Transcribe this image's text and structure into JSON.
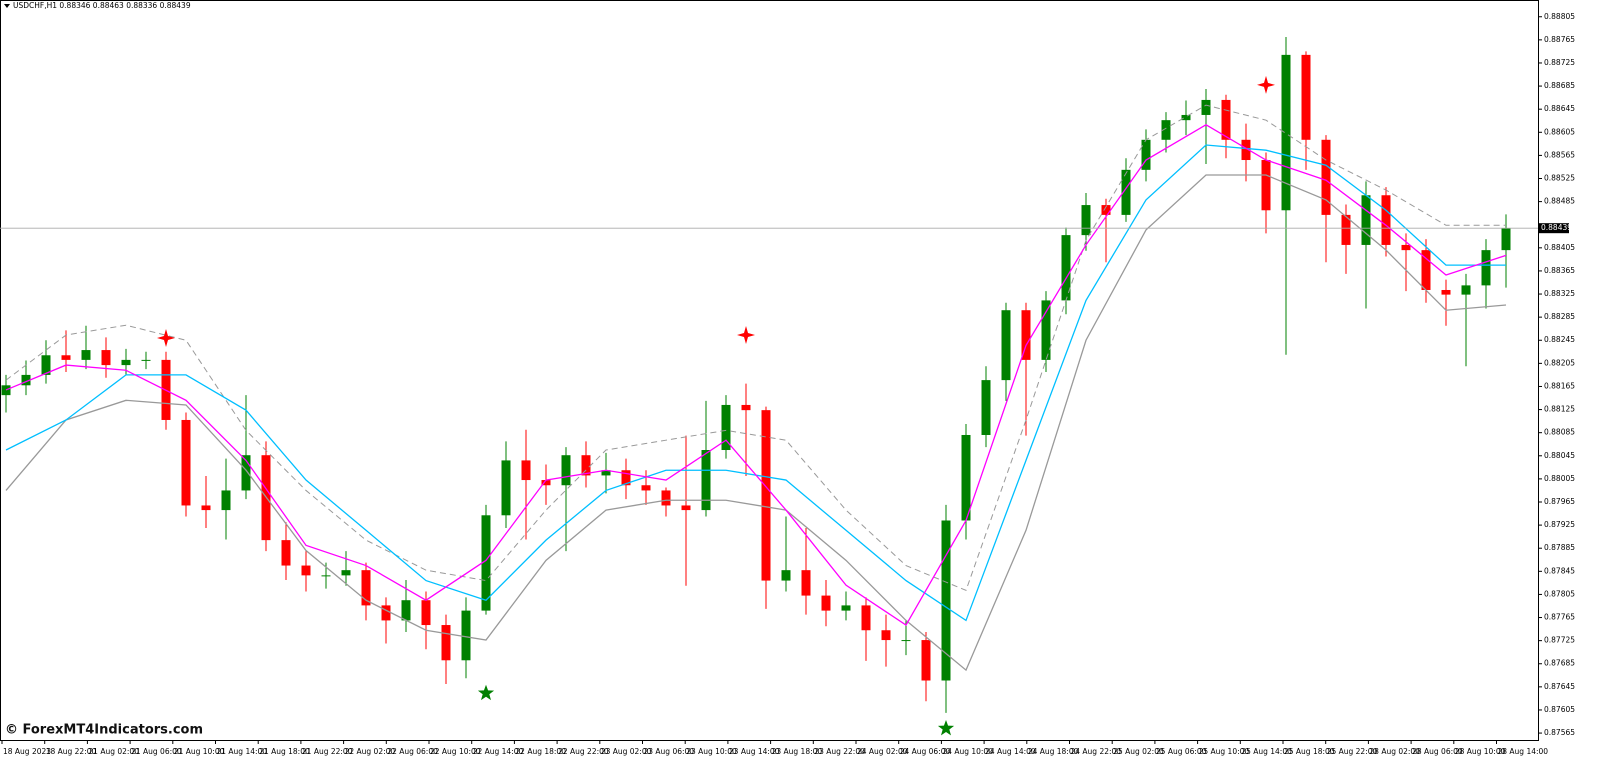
{
  "chart_data": {
    "type": "candlestick",
    "title": "USDCHF,H1  0.88346 0.88463 0.88336 0.88439",
    "watermark": "© ForexMT4Indicators.com",
    "x_labels": [
      "18 Aug 2023",
      "18 Aug 22:00",
      "21 Aug 02:00",
      "21 Aug 06:00",
      "21 Aug 10:00",
      "21 Aug 14:00",
      "21 Aug 18:00",
      "21 Aug 22:00",
      "22 Aug 02:00",
      "22 Aug 06:00",
      "22 Aug 10:00",
      "22 Aug 14:00",
      "22 Aug 18:00",
      "22 Aug 22:00",
      "23 Aug 02:00",
      "23 Aug 06:00",
      "23 Aug 10:00",
      "23 Aug 14:00",
      "23 Aug 18:00",
      "23 Aug 22:00",
      "24 Aug 02:00",
      "24 Aug 06:00",
      "24 Aug 10:00",
      "24 Aug 14:00",
      "24 Aug 18:00",
      "24 Aug 22:00",
      "25 Aug 02:00",
      "25 Aug 06:00",
      "25 Aug 10:00",
      "25 Aug 14:00",
      "25 Aug 18:00",
      "25 Aug 22:00",
      "28 Aug 02:00",
      "28 Aug 06:00",
      "28 Aug 10:00",
      "28 Aug 14:00"
    ],
    "open": [
      0.8815,
      0.88167,
      0.88185,
      0.88219,
      0.88211,
      0.88228,
      0.88202,
      0.88211,
      0.88211,
      0.88107,
      0.87959,
      0.87951,
      0.87985,
      0.88046,
      0.87899,
      0.87855,
      0.87838,
      0.87838,
      0.87847,
      0.87786,
      0.8776,
      0.87795,
      0.87752,
      0.87691,
      0.87777,
      0.87942,
      0.88037,
      0.88003,
      0.87994,
      0.88046,
      0.88011,
      0.8802,
      0.87994,
      0.87985,
      0.87959,
      0.87951,
      0.88055,
      0.88133,
      0.88124,
      0.87829,
      0.87847,
      0.87803,
      0.87777,
      0.87786,
      0.87743,
      0.87726,
      0.87726,
      0.87656,
      0.87933,
      0.88081,
      0.88176,
      0.88297,
      0.88211,
      0.88314,
      0.88427,
      0.88479,
      0.88462,
      0.8854,
      0.88592,
      0.88626,
      0.88635,
      0.88661,
      0.88592,
      0.88557,
      0.8847,
      0.88739,
      0.88592,
      0.88462,
      0.8841,
      0.88496,
      0.8841,
      0.88401,
      0.88332,
      0.88324,
      0.8834,
      0.88401
    ],
    "high": [
      0.88185,
      0.8821,
      0.88245,
      0.88262,
      0.8827,
      0.8825,
      0.8823,
      0.88225,
      0.88225,
      0.8812,
      0.8801,
      0.8804,
      0.8815,
      0.8807,
      0.8793,
      0.8788,
      0.8786,
      0.8788,
      0.8786,
      0.878,
      0.8783,
      0.8781,
      0.8777,
      0.878,
      0.8796,
      0.8807,
      0.8809,
      0.8803,
      0.8806,
      0.8807,
      0.8805,
      0.8804,
      0.8802,
      0.8799,
      0.8808,
      0.8814,
      0.8815,
      0.8817,
      0.8813,
      0.8794,
      0.8792,
      0.8783,
      0.8781,
      0.878,
      0.8777,
      0.8776,
      0.8774,
      0.8796,
      0.881,
      0.882,
      0.8831,
      0.8831,
      0.8833,
      0.8844,
      0.885,
      0.8849,
      0.8856,
      0.8861,
      0.8864,
      0.8866,
      0.8868,
      0.8867,
      0.8862,
      0.8857,
      0.8877,
      0.88745,
      0.886,
      0.8848,
      0.8852,
      0.8851,
      0.8843,
      0.8842,
      0.8835,
      0.8836,
      0.8842,
      0.88463
    ],
    "low": [
      0.8812,
      0.8815,
      0.8817,
      0.8819,
      0.88195,
      0.8818,
      0.88185,
      0.88195,
      0.8809,
      0.8794,
      0.8792,
      0.879,
      0.8797,
      0.8788,
      0.8783,
      0.8781,
      0.87815,
      0.8782,
      0.8776,
      0.8772,
      0.8774,
      0.8771,
      0.8765,
      0.8766,
      0.8777,
      0.8792,
      0.879,
      0.8796,
      0.8788,
      0.8799,
      0.8798,
      0.8797,
      0.8796,
      0.8794,
      0.8782,
      0.8794,
      0.8804,
      0.8801,
      0.8778,
      0.8781,
      0.8777,
      0.8775,
      0.8776,
      0.8769,
      0.8768,
      0.877,
      0.8762,
      0.876,
      0.879,
      0.8806,
      0.8814,
      0.8808,
      0.8819,
      0.8829,
      0.884,
      0.8838,
      0.8845,
      0.8852,
      0.8857,
      0.886,
      0.8855,
      0.8856,
      0.8852,
      0.8843,
      0.8822,
      0.8854,
      0.8838,
      0.8836,
      0.883,
      0.8839,
      0.8833,
      0.8831,
      0.8827,
      0.882,
      0.883,
      0.88336
    ],
    "close": [
      0.88167,
      0.88185,
      0.88219,
      0.88211,
      0.88228,
      0.88202,
      0.88211,
      0.88211,
      0.88107,
      0.87959,
      0.87951,
      0.87985,
      0.88046,
      0.87899,
      0.87855,
      0.87838,
      0.87838,
      0.87847,
      0.87786,
      0.8776,
      0.87795,
      0.87752,
      0.87691,
      0.87777,
      0.87942,
      0.88037,
      0.88003,
      0.87994,
      0.88046,
      0.88011,
      0.8802,
      0.87994,
      0.87985,
      0.87959,
      0.87951,
      0.88055,
      0.88133,
      0.88124,
      0.87829,
      0.87847,
      0.87803,
      0.87777,
      0.87786,
      0.87743,
      0.87726,
      0.87726,
      0.87656,
      0.87933,
      0.88081,
      0.88176,
      0.88297,
      0.88211,
      0.88314,
      0.88427,
      0.88479,
      0.88462,
      0.8854,
      0.88592,
      0.88626,
      0.88635,
      0.88661,
      0.88592,
      0.88557,
      0.8847,
      0.88739,
      0.88592,
      0.88462,
      0.8841,
      0.88496,
      0.8841,
      0.88401,
      0.88332,
      0.88324,
      0.8834,
      0.88401,
      0.88439
    ],
    "up_color": "#008000",
    "down_color": "#ff0000",
    "lines": [
      {
        "color": "#999999",
        "dash": true,
        "x": [
          0,
          3,
          6,
          9,
          12,
          15,
          18,
          21,
          24,
          27,
          30,
          33,
          36,
          39,
          42,
          45,
          48,
          51,
          54,
          57,
          60,
          63,
          66,
          69,
          72,
          75
        ],
        "values": [
          0.88176,
          0.88254,
          0.88271,
          0.88245,
          0.88089,
          0.87985,
          0.87899,
          0.87847,
          0.87829,
          0.87951,
          0.88055,
          0.88072,
          0.88089,
          0.88072,
          0.87951,
          0.87855,
          0.87812,
          0.88107,
          0.88418,
          0.88592,
          0.88652,
          0.88626,
          0.88557,
          0.88505,
          0.88444,
          0.88444
        ]
      },
      {
        "color": "#999999",
        "dash": false,
        "x": [
          0,
          3,
          6,
          9,
          12,
          15,
          18,
          21,
          24,
          27,
          30,
          33,
          36,
          39,
          42,
          45,
          48,
          51,
          54,
          57,
          60,
          63,
          66,
          69,
          72,
          75
        ],
        "values": [
          0.87985,
          0.88107,
          0.88141,
          0.88133,
          0.8802,
          0.87881,
          0.87795,
          0.87743,
          0.87726,
          0.87864,
          0.87951,
          0.87968,
          0.87968,
          0.87951,
          0.87864,
          0.8776,
          0.87674,
          0.87916,
          0.88245,
          0.88436,
          0.88531,
          0.88531,
          0.88488,
          0.88401,
          0.88297,
          0.88306
        ]
      },
      {
        "color": "#00bfff",
        "dash": false,
        "x": [
          0,
          3,
          6,
          9,
          12,
          15,
          18,
          21,
          24,
          27,
          30,
          33,
          36,
          39,
          42,
          45,
          48,
          51,
          54,
          57,
          60,
          63,
          66,
          69,
          72,
          75
        ],
        "values": [
          0.88055,
          0.88107,
          0.88185,
          0.88185,
          0.88124,
          0.88003,
          0.87916,
          0.87829,
          0.87795,
          0.87899,
          0.87985,
          0.8802,
          0.8802,
          0.88003,
          0.87916,
          0.87829,
          0.8776,
          0.88037,
          0.88314,
          0.88488,
          0.88583,
          0.88574,
          0.88548,
          0.8847,
          0.88375,
          0.88375
        ]
      },
      {
        "color": "#ff00ff",
        "dash": false,
        "x": [
          0,
          3,
          6,
          9,
          12,
          15,
          18,
          21,
          24,
          27,
          30,
          33,
          36,
          39,
          42,
          45,
          48,
          51,
          54,
          57,
          60,
          63,
          66,
          69,
          72,
          75
        ],
        "values": [
          0.88159,
          0.88202,
          0.88193,
          0.88141,
          0.88037,
          0.8789,
          0.87855,
          0.87795,
          0.87864,
          0.88003,
          0.8802,
          0.88003,
          0.88072,
          0.87951,
          0.87821,
          0.87752,
          0.87933,
          0.88236,
          0.8841,
          0.88557,
          0.88618,
          0.88557,
          0.88522,
          0.88444,
          0.88358,
          0.88392
        ]
      }
    ],
    "signals": [
      {
        "index": 8,
        "value": 0.88249,
        "color": "#ff0000"
      },
      {
        "index": 37,
        "value": 0.88254,
        "color": "#ff0000"
      },
      {
        "index": 63,
        "value": 0.88687,
        "color": "#ff0000"
      },
      {
        "index": 24,
        "value": 0.87634,
        "color": "#008000"
      },
      {
        "index": 47,
        "value": 0.87573,
        "color": "#008000"
      }
    ],
    "current_price": 0.88439,
    "ylim": [
      0.87553,
      0.88834
    ],
    "yticks": [
      0.88805,
      0.88765,
      0.88725,
      0.88685,
      0.88645,
      0.88605,
      0.88565,
      0.88525,
      0.88485,
      0.88405,
      0.88365,
      0.88325,
      0.88285,
      0.88245,
      0.88205,
      0.88165,
      0.88125,
      0.88085,
      0.88045,
      0.88005,
      0.87965,
      0.87925,
      0.87885,
      0.87845,
      0.87805,
      0.87765,
      0.87725,
      0.87685,
      0.87645,
      0.87605,
      0.87565
    ]
  }
}
